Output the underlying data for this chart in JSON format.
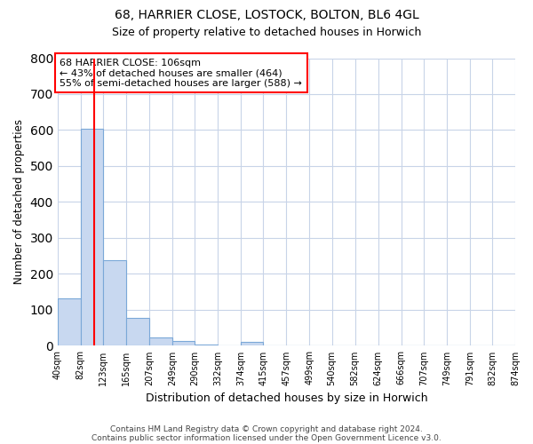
{
  "title_line1": "68, HARRIER CLOSE, LOSTOCK, BOLTON, BL6 4GL",
  "title_line2": "Size of property relative to detached houses in Horwich",
  "xlabel": "Distribution of detached houses by size in Horwich",
  "ylabel": "Number of detached properties",
  "bar_edges": [
    40,
    82,
    123,
    165,
    207,
    249,
    290,
    332,
    374,
    415,
    457,
    499,
    540,
    582,
    624,
    666,
    707,
    749,
    791,
    832,
    874
  ],
  "bar_heights": [
    133,
    604,
    237,
    78,
    24,
    13,
    4,
    2,
    10,
    0,
    0,
    0,
    0,
    0,
    0,
    0,
    0,
    0,
    0,
    0
  ],
  "bar_color": "#c8d8f0",
  "bar_edge_color": "#7ba8d8",
  "grid_color": "#c8d4e8",
  "annotation_line1": "68 HARRIER CLOSE: 106sqm",
  "annotation_line2": "← 43% of detached houses are smaller (464)",
  "annotation_line3": "55% of semi-detached houses are larger (588) →",
  "vline_x": 106,
  "vline_color": "#ff0000",
  "ylim": [
    0,
    800
  ],
  "yticks": [
    0,
    100,
    200,
    300,
    400,
    500,
    600,
    700,
    800
  ],
  "footer_line1": "Contains HM Land Registry data © Crown copyright and database right 2024.",
  "footer_line2": "Contains public sector information licensed under the Open Government Licence v3.0.",
  "bg_color": "#ffffff",
  "plot_bg_color": "#ffffff"
}
